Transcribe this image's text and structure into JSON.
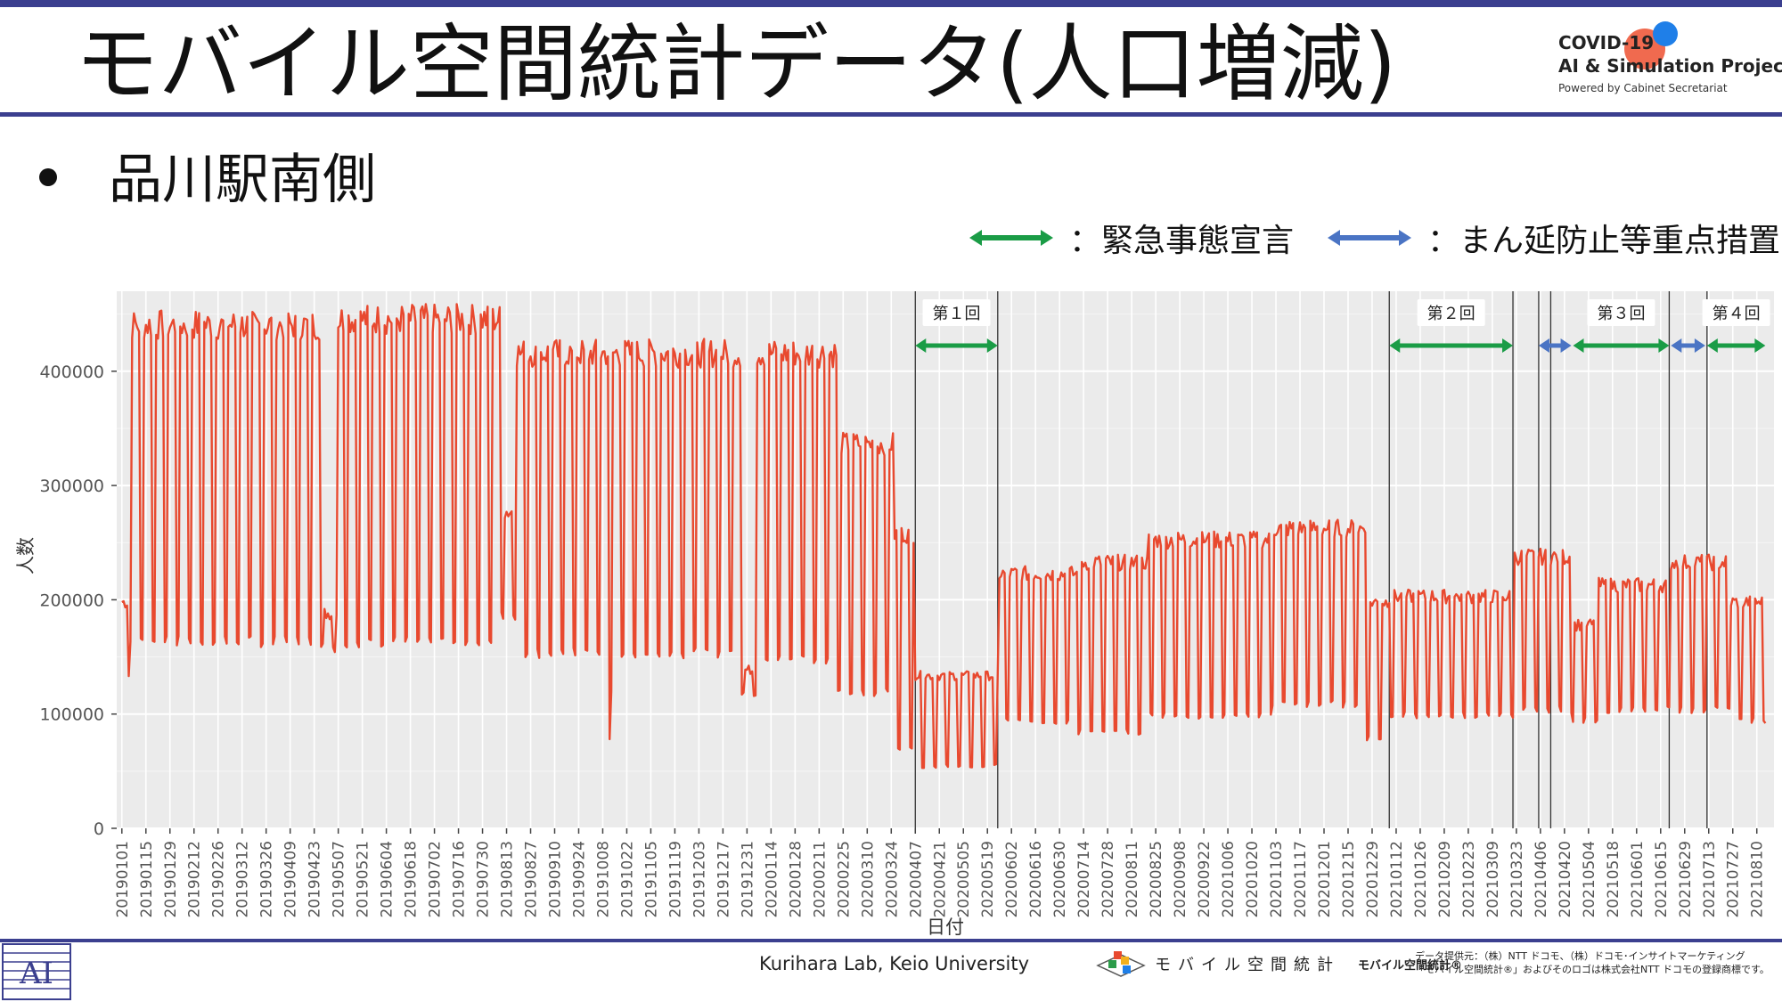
{
  "header": {
    "title": "モバイル空間統計データ(人口増減)",
    "logo_line1": "COVID-19",
    "logo_line2": "AI & Simulation Project",
    "logo_line3": "Powered by Cabinet Secretariat"
  },
  "bullet": {
    "text": "品川駅南側"
  },
  "legend": {
    "green_label": "：緊急事態宣言",
    "blue_label": "：まん延防止等重点措置",
    "green_color": "#1a9c46",
    "blue_color": "#4a74c4"
  },
  "footer": {
    "lab": "Kurihara Lab, Keio University",
    "mobile_logo": "モバイル空間統計",
    "mobile_logo_reg": "モバイル空間統計®",
    "provider_line1": "データ提供元：（株）NTT ドコモ、（株）ドコモ･インサイトマーケティング",
    "provider_line2": "「モバイル空間統計®」およびそのロゴは株式会社NTT ドコモの登録商標です。"
  },
  "chart_data": {
    "type": "line",
    "xlabel": "日付",
    "ylabel": "人数",
    "ylim": [
      0,
      470000
    ],
    "xlim": [
      "2018-12-29",
      "2021-08-20"
    ],
    "y_ticks": [
      "0",
      "100000",
      "200000",
      "300000",
      "400000"
    ],
    "x_ticks": [
      "20190101",
      "20190115",
      "20190129",
      "20190212",
      "20190226",
      "20190312",
      "20190326",
      "20190409",
      "20190423",
      "20190507",
      "20190521",
      "20190604",
      "20190618",
      "20190702",
      "20190716",
      "20190730",
      "20190813",
      "20190827",
      "20190910",
      "20190924",
      "20191008",
      "20191022",
      "20191105",
      "20191119",
      "20191203",
      "20191217",
      "20191231",
      "20200114",
      "20200128",
      "20200211",
      "20200225",
      "20200310",
      "20200324",
      "20200407",
      "20200421",
      "20200505",
      "20200519",
      "20200602",
      "20200616",
      "20200630",
      "20200714",
      "20200728",
      "20200811",
      "20200825",
      "20200908",
      "20200922",
      "20201006",
      "20201020",
      "20201103",
      "20201117",
      "20201201",
      "20201215",
      "20201229",
      "20210112",
      "20210126",
      "20210209",
      "20210223",
      "20210309",
      "20210323",
      "20210406",
      "20210420",
      "20210504",
      "20210518",
      "20210601",
      "20210615",
      "20210629",
      "20210713",
      "20210727",
      "20210810"
    ],
    "grid": true,
    "line_color": "#e8492f",
    "series": [
      {
        "values_description": "daily count, weekday high / weekend low",
        "x_start": "2019-01-01",
        "x_end": "2021-08-15",
        "periods": [
          {
            "from": "2019-01-01",
            "to": "2019-01-05",
            "weekday": 200000,
            "weekend": 135000
          },
          {
            "from": "2019-01-06",
            "to": "2019-04-26",
            "weekday": 445000,
            "weekend": 165000
          },
          {
            "from": "2019-04-27",
            "to": "2019-05-06",
            "weekday": 190000,
            "weekend": 160000
          },
          {
            "from": "2019-05-07",
            "to": "2019-08-09",
            "weekday": 450000,
            "weekend": 165000
          },
          {
            "from": "2019-08-10",
            "to": "2019-08-18",
            "weekday": 280000,
            "weekend": 190000
          },
          {
            "from": "2019-08-19",
            "to": "2019-12-27",
            "weekday": 420000,
            "weekend": 155000
          },
          {
            "from": "2019-12-28",
            "to": "2020-01-05",
            "weekday": 140000,
            "weekend": 120000
          },
          {
            "from": "2020-01-06",
            "to": "2020-02-21",
            "weekday": 420000,
            "weekend": 150000
          },
          {
            "from": "2020-02-22",
            "to": "2020-03-25",
            "weekday": 340000,
            "weekend": 120000
          },
          {
            "from": "2020-03-26",
            "to": "2020-04-06",
            "weekday": 260000,
            "weekend": 70000
          },
          {
            "from": "2020-04-07",
            "to": "2020-05-25",
            "weekday": 135000,
            "weekend": 55000
          },
          {
            "from": "2020-05-26",
            "to": "2020-07-10",
            "weekday": 225000,
            "weekend": 95000
          },
          {
            "from": "2020-07-11",
            "to": "2020-08-20",
            "weekday": 235000,
            "weekend": 85000
          },
          {
            "from": "2020-08-21",
            "to": "2020-10-31",
            "weekday": 255000,
            "weekend": 100000
          },
          {
            "from": "2020-11-01",
            "to": "2020-12-25",
            "weekday": 265000,
            "weekend": 110000
          },
          {
            "from": "2020-12-26",
            "to": "2021-01-07",
            "weekday": 200000,
            "weekend": 80000
          },
          {
            "from": "2021-01-08",
            "to": "2021-03-21",
            "weekday": 205000,
            "weekend": 100000
          },
          {
            "from": "2021-03-22",
            "to": "2021-04-24",
            "weekday": 240000,
            "weekend": 105000
          },
          {
            "from": "2021-04-25",
            "to": "2021-05-09",
            "weekday": 180000,
            "weekend": 95000
          },
          {
            "from": "2021-05-10",
            "to": "2021-06-20",
            "weekday": 215000,
            "weekend": 105000
          },
          {
            "from": "2021-06-21",
            "to": "2021-07-25",
            "weekday": 235000,
            "weekend": 105000
          },
          {
            "from": "2021-07-26",
            "to": "2021-08-15",
            "weekday": 200000,
            "weekend": 95000
          }
        ],
        "dips": [
          {
            "date": "2019-10-12",
            "value": 78000
          },
          {
            "date": "2019-10-13",
            "value": 120000
          }
        ]
      }
    ],
    "policy_lines": [
      "2020-04-07",
      "2020-05-25",
      "2021-01-08",
      "2021-03-21",
      "2021-04-05",
      "2021-04-12",
      "2021-06-20",
      "2021-07-12"
    ],
    "annotations": [
      {
        "label": "第１回",
        "from": "2020-04-07",
        "to": "2020-05-25",
        "kind": "green"
      },
      {
        "label": "第２回",
        "from": "2021-01-08",
        "to": "2021-03-21",
        "kind": "green"
      },
      {
        "label": "第３回",
        "from": "2021-04-25",
        "to": "2021-06-20",
        "kind": "green"
      },
      {
        "label": "第４回",
        "from": "2021-07-12",
        "to": "2021-08-15",
        "kind": "green"
      },
      {
        "label": "",
        "from": "2021-04-05",
        "to": "2021-04-24",
        "kind": "blue"
      },
      {
        "label": "",
        "from": "2021-06-21",
        "to": "2021-07-11",
        "kind": "blue"
      }
    ]
  }
}
